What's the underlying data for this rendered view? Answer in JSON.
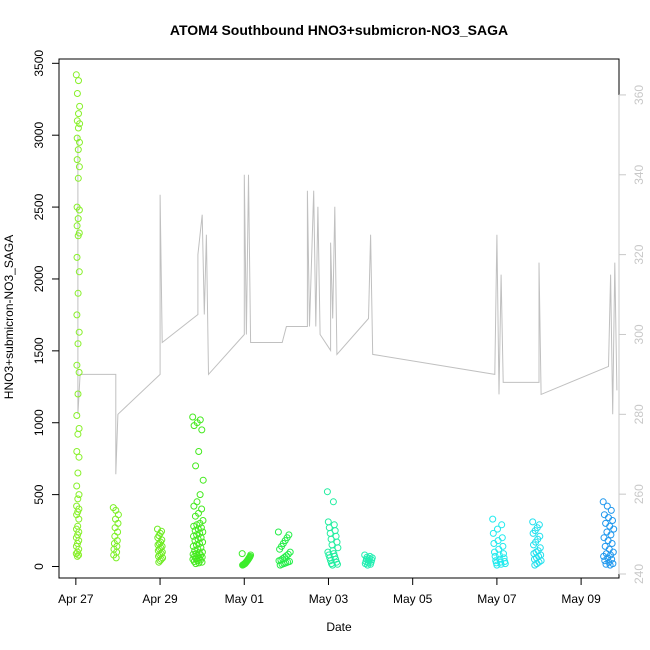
{
  "chart_data": {
    "type": "scatter",
    "title": "ATOM4 Southbound HNO3+submicron-NO3_SAGA",
    "xlabel": "Date",
    "ylabel": "HNO3+submicron-NO3_SAGA",
    "xlim_days": [
      -0.4,
      12.9
    ],
    "ylim": [
      -80,
      3530
    ],
    "y2lim": [
      239,
      369
    ],
    "x_ticks": [
      {
        "day": 0,
        "label": "Apr 27"
      },
      {
        "day": 2,
        "label": "Apr 29"
      },
      {
        "day": 4,
        "label": "May 01"
      },
      {
        "day": 6,
        "label": "May 03"
      },
      {
        "day": 8,
        "label": "May 05"
      },
      {
        "day": 10,
        "label": "May 07"
      },
      {
        "day": 12,
        "label": "May 09"
      }
    ],
    "y_ticks": [
      0,
      500,
      1000,
      1500,
      2000,
      2500,
      3000,
      3500
    ],
    "y2_ticks": [
      240,
      260,
      280,
      300,
      320,
      340,
      360
    ],
    "series": [
      {
        "name": "HNO3+submicron-NO3_SAGA",
        "kind": "points",
        "color_by": "date"
      },
      {
        "name": "right-axis trace",
        "kind": "line",
        "color": "#c0c0c0"
      }
    ],
    "flights": [
      {
        "day": 0.05,
        "width": 0.08,
        "color": "#88f02a",
        "values": [
          3420,
          3380,
          3290,
          3200,
          3150,
          3100,
          3080,
          3050,
          2980,
          2950,
          2900,
          2830,
          2780,
          2700,
          2500,
          2480,
          2420,
          2370,
          2320,
          2300,
          2150,
          2050,
          1900,
          1750,
          1630,
          1550,
          1400,
          1350,
          1200,
          1050,
          960,
          920,
          800,
          760,
          650,
          560,
          500,
          470,
          420,
          400,
          380,
          360,
          330,
          280,
          260,
          240,
          220,
          200,
          180,
          160,
          140,
          120,
          100,
          90,
          80,
          70
        ]
      },
      {
        "day": 0.95,
        "width": 0.12,
        "color": "#7cf026",
        "values": [
          410,
          390,
          360,
          330,
          300,
          270,
          240,
          210,
          180,
          160,
          140,
          120,
          100,
          80,
          60
        ]
      },
      {
        "day": 2.0,
        "width": 0.12,
        "color": "#6eec22",
        "values": [
          260,
          245,
          230,
          215,
          200,
          185,
          170,
          160,
          150,
          140,
          130,
          120,
          110,
          100,
          90,
          80,
          70,
          60,
          50,
          40,
          30
        ]
      },
      {
        "day": 2.9,
        "width": 0.25,
        "color": "#44ea1e",
        "values": [
          1040,
          1020,
          1000,
          980,
          950,
          800,
          700,
          600,
          500,
          450,
          420,
          400,
          370,
          350,
          320,
          300,
          290,
          280,
          270,
          260,
          250,
          240,
          230,
          220,
          210,
          200,
          190,
          180,
          170,
          160,
          150,
          140,
          130,
          120,
          110,
          100,
          95,
          90,
          85,
          80,
          75,
          70,
          65,
          60,
          55,
          50,
          45,
          40,
          35,
          30,
          25,
          20
        ]
      },
      {
        "day": 4.05,
        "width": 0.2,
        "color": "#3ded2c",
        "values": [
          90,
          80,
          70,
          65,
          60,
          55,
          50,
          45,
          40,
          36,
          32,
          28,
          24,
          20,
          18,
          16,
          14,
          12,
          10
        ]
      },
      {
        "day": 4.95,
        "width": 0.28,
        "color": "#24ee48",
        "values": [
          240,
          220,
          200,
          180,
          160,
          140,
          120,
          100,
          85,
          75,
          65,
          55,
          45,
          40,
          35,
          30,
          25,
          20,
          15,
          10
        ]
      },
      {
        "day": 6.1,
        "width": 0.25,
        "color": "#22eea0",
        "values": [
          520,
          450,
          310,
          290,
          270,
          250,
          230,
          210,
          190,
          170,
          150,
          130,
          110,
          100,
          90,
          80,
          70,
          60,
          50,
          40,
          30,
          20,
          15,
          10
        ]
      },
      {
        "day": 6.95,
        "width": 0.18,
        "color": "#22eeb2",
        "values": [
          80,
          70,
          65,
          60,
          55,
          50,
          45,
          40,
          35,
          30,
          25,
          20,
          15,
          10
        ]
      },
      {
        "day": 10.05,
        "width": 0.3,
        "color": "#22eaee",
        "values": [
          330,
          290,
          260,
          230,
          200,
          180,
          160,
          140,
          120,
          100,
          90,
          80,
          70,
          60,
          50,
          40,
          35,
          30,
          25,
          20,
          15,
          10
        ]
      },
      {
        "day": 10.95,
        "width": 0.2,
        "color": "#22e0ee",
        "values": [
          310,
          290,
          270,
          250,
          230,
          210,
          190,
          170,
          150,
          130,
          110,
          100,
          90,
          80,
          70,
          60,
          50,
          40,
          30,
          20,
          10
        ]
      },
      {
        "day": 12.65,
        "width": 0.25,
        "color": "#2098ee",
        "values": [
          450,
          420,
          390,
          360,
          340,
          320,
          300,
          280,
          260,
          240,
          220,
          200,
          180,
          160,
          140,
          120,
          100,
          90,
          80,
          70,
          60,
          50,
          40,
          30,
          20,
          15,
          10
        ]
      }
    ],
    "trace_segments": [
      [
        0.05,
        290
      ],
      [
        0.05,
        350
      ],
      [
        0.05,
        280
      ],
      [
        0.1,
        290
      ],
      [
        0.95,
        290
      ],
      [
        0.95,
        265
      ],
      [
        1.0,
        280
      ],
      [
        2.0,
        290
      ],
      [
        2.0,
        335
      ],
      [
        2.05,
        298
      ],
      [
        2.9,
        305
      ],
      [
        2.9,
        320
      ],
      [
        3.0,
        330
      ],
      [
        3.05,
        305
      ],
      [
        3.1,
        325
      ],
      [
        3.15,
        290
      ],
      [
        4.0,
        300
      ],
      [
        4.0,
        340
      ],
      [
        4.05,
        300
      ],
      [
        4.1,
        340
      ],
      [
        4.15,
        298
      ],
      [
        4.9,
        298
      ],
      [
        5.0,
        302
      ],
      [
        5.5,
        302
      ],
      [
        5.5,
        336
      ],
      [
        5.55,
        302
      ],
      [
        5.65,
        336
      ],
      [
        5.7,
        302
      ],
      [
        5.75,
        332
      ],
      [
        5.8,
        300
      ],
      [
        6.05,
        296
      ],
      [
        6.05,
        323
      ],
      [
        6.1,
        304
      ],
      [
        6.15,
        332
      ],
      [
        6.2,
        295
      ],
      [
        6.95,
        304
      ],
      [
        7.0,
        325
      ],
      [
        7.05,
        295
      ],
      [
        9.95,
        290
      ],
      [
        10.0,
        325
      ],
      [
        10.05,
        285
      ],
      [
        10.1,
        315
      ],
      [
        10.15,
        288
      ],
      [
        11.0,
        288
      ],
      [
        11.0,
        318
      ],
      [
        11.05,
        285
      ],
      [
        12.65,
        292
      ],
      [
        12.7,
        315
      ],
      [
        12.75,
        280
      ],
      [
        12.8,
        318
      ],
      [
        12.85,
        286
      ]
    ]
  }
}
